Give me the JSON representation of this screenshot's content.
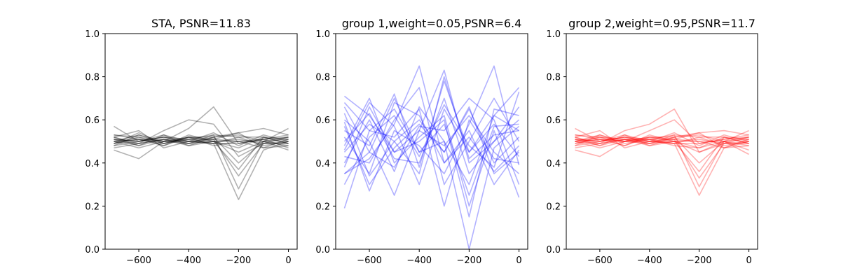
{
  "chart_data": [
    {
      "type": "line",
      "title": "STA, PSNR=11.83",
      "color": "#000000",
      "opacity": 0.3,
      "x": [
        -700,
        -600,
        -500,
        -400,
        -300,
        -200,
        -100,
        0
      ],
      "xticks": [
        -600,
        -400,
        -200,
        0
      ],
      "xtick_labels": [
        "−600",
        "−400",
        "−200",
        "0"
      ],
      "yticks": [
        0.0,
        0.2,
        0.4,
        0.6,
        0.8,
        1.0
      ],
      "ytick_labels": [
        "0.0",
        "0.2",
        "0.4",
        "0.6",
        "0.8",
        "1.0"
      ],
      "xlim": [
        -735,
        35
      ],
      "ylim": [
        0,
        1
      ],
      "series": [
        {
          "values": [
            0.5,
            0.51,
            0.49,
            0.52,
            0.51,
            0.5,
            0.5,
            0.51
          ]
        },
        {
          "values": [
            0.52,
            0.48,
            0.53,
            0.5,
            0.5,
            0.47,
            0.52,
            0.49
          ]
        },
        {
          "values": [
            0.48,
            0.53,
            0.5,
            0.49,
            0.53,
            0.52,
            0.48,
            0.5
          ]
        },
        {
          "values": [
            0.51,
            0.5,
            0.52,
            0.51,
            0.49,
            0.49,
            0.51,
            0.53
          ]
        },
        {
          "values": [
            0.47,
            0.49,
            0.51,
            0.48,
            0.52,
            0.53,
            0.5,
            0.48
          ]
        },
        {
          "values": [
            0.53,
            0.52,
            0.48,
            0.53,
            0.5,
            0.51,
            0.49,
            0.52
          ]
        },
        {
          "values": [
            0.5,
            0.47,
            0.5,
            0.5,
            0.54,
            0.48,
            0.53,
            0.5
          ]
        },
        {
          "values": [
            0.49,
            0.54,
            0.49,
            0.52,
            0.48,
            0.5,
            0.51,
            0.47
          ]
        },
        {
          "values": [
            0.57,
            0.5,
            0.52,
            0.49,
            0.5,
            0.45,
            0.5,
            0.56
          ]
        },
        {
          "values": [
            0.46,
            0.42,
            0.5,
            0.51,
            0.51,
            0.54,
            0.47,
            0.51
          ]
        },
        {
          "values": [
            0.52,
            0.55,
            0.47,
            0.5,
            0.49,
            0.52,
            0.52,
            0.49
          ]
        },
        {
          "values": [
            0.5,
            0.49,
            0.55,
            0.6,
            0.58,
            0.43,
            0.49,
            0.5
          ]
        },
        {
          "values": [
            0.49,
            0.52,
            0.5,
            0.56,
            0.66,
            0.49,
            0.51,
            0.52
          ]
        },
        {
          "values": [
            0.51,
            0.48,
            0.51,
            0.49,
            0.52,
            0.4,
            0.5,
            0.46
          ]
        },
        {
          "values": [
            0.53,
            0.51,
            0.48,
            0.52,
            0.5,
            0.37,
            0.52,
            0.51
          ]
        },
        {
          "values": [
            0.48,
            0.5,
            0.52,
            0.5,
            0.51,
            0.34,
            0.49,
            0.49
          ]
        },
        {
          "values": [
            0.5,
            0.53,
            0.49,
            0.51,
            0.53,
            0.28,
            0.5,
            0.52
          ]
        },
        {
          "values": [
            0.52,
            0.49,
            0.51,
            0.5,
            0.49,
            0.23,
            0.46,
            0.5
          ]
        },
        {
          "values": [
            0.49,
            0.51,
            0.5,
            0.52,
            0.52,
            0.54,
            0.56,
            0.53
          ]
        },
        {
          "values": [
            0.51,
            0.5,
            0.53,
            0.48,
            0.5,
            0.5,
            0.47,
            0.48
          ]
        }
      ]
    },
    {
      "type": "line",
      "title": "group 1,weight=0.05,PSNR=6.4",
      "color": "#0000ff",
      "opacity": 0.3,
      "x": [
        -700,
        -600,
        -500,
        -400,
        -300,
        -200,
        -100,
        0
      ],
      "xticks": [
        -600,
        -400,
        -200,
        0
      ],
      "xtick_labels": [
        "−600",
        "−400",
        "−200",
        "0"
      ],
      "yticks": [
        0.0,
        0.2,
        0.4,
        0.6,
        0.8,
        1.0
      ],
      "ytick_labels": [
        "0.0",
        "0.2",
        "0.4",
        "0.6",
        "0.8",
        "1.0"
      ],
      "xlim": [
        -735,
        35
      ],
      "ylim": [
        0,
        1
      ],
      "series": [
        {
          "values": [
            0.71,
            0.62,
            0.45,
            0.55,
            0.83,
            0.4,
            0.5,
            0.6
          ]
        },
        {
          "values": [
            0.19,
            0.55,
            0.65,
            0.45,
            0.5,
            0.3,
            0.62,
            0.75
          ]
        },
        {
          "values": [
            0.35,
            0.42,
            0.58,
            0.85,
            0.4,
            0.52,
            0.36,
            0.48
          ]
        },
        {
          "values": [
            0.48,
            0.7,
            0.4,
            0.52,
            0.62,
            0.2,
            0.55,
            0.24
          ]
        },
        {
          "values": [
            0.63,
            0.34,
            0.5,
            0.6,
            0.45,
            0.65,
            0.4,
            0.52
          ]
        },
        {
          "values": [
            0.55,
            0.48,
            0.72,
            0.38,
            0.78,
            0.45,
            0.58,
            0.43
          ]
        },
        {
          "values": [
            0.4,
            0.6,
            0.36,
            0.66,
            0.5,
            0.0,
            0.47,
            0.57
          ]
        },
        {
          "values": [
            0.59,
            0.27,
            0.55,
            0.48,
            0.35,
            0.58,
            0.85,
            0.39
          ]
        },
        {
          "values": [
            0.3,
            0.52,
            0.62,
            0.43,
            0.67,
            0.48,
            0.38,
            0.73
          ]
        },
        {
          "values": [
            0.66,
            0.45,
            0.38,
            0.57,
            0.55,
            0.7,
            0.6,
            0.3
          ]
        },
        {
          "values": [
            0.45,
            0.58,
            0.5,
            0.35,
            0.8,
            0.42,
            0.53,
            0.55
          ]
        },
        {
          "values": [
            0.52,
            0.35,
            0.68,
            0.62,
            0.4,
            0.55,
            0.3,
            0.46
          ]
        },
        {
          "values": [
            0.38,
            0.66,
            0.45,
            0.5,
            0.6,
            0.15,
            0.65,
            0.62
          ]
        },
        {
          "values": [
            0.6,
            0.5,
            0.25,
            0.55,
            0.48,
            0.62,
            0.45,
            0.35
          ]
        },
        {
          "values": [
            0.43,
            0.4,
            0.6,
            0.75,
            0.3,
            0.5,
            0.7,
            0.5
          ]
        },
        {
          "values": [
            0.5,
            0.63,
            0.42,
            0.4,
            0.7,
            0.35,
            0.5,
            0.66
          ]
        },
        {
          "values": [
            0.68,
            0.55,
            0.52,
            0.65,
            0.2,
            0.6,
            0.42,
            0.4
          ]
        },
        {
          "values": [
            0.35,
            0.45,
            0.7,
            0.45,
            0.58,
            0.25,
            0.57,
            0.58
          ]
        },
        {
          "values": [
            0.57,
            0.3,
            0.47,
            0.58,
            0.45,
            0.66,
            0.35,
            0.45
          ]
        },
        {
          "values": [
            0.46,
            0.68,
            0.57,
            0.3,
            0.65,
            0.45,
            0.62,
            0.55
          ]
        }
      ]
    },
    {
      "type": "line",
      "title": "group 2,weight=0.95,PSNR=11.7",
      "color": "#ff0000",
      "opacity": 0.3,
      "x": [
        -700,
        -600,
        -500,
        -400,
        -300,
        -200,
        -100,
        0
      ],
      "xticks": [
        -600,
        -400,
        -200,
        0
      ],
      "xtick_labels": [
        "−600",
        "−400",
        "−200",
        "0"
      ],
      "yticks": [
        0.0,
        0.2,
        0.4,
        0.6,
        0.8,
        1.0
      ],
      "ytick_labels": [
        "0.0",
        "0.2",
        "0.4",
        "0.6",
        "0.8",
        "1.0"
      ],
      "xlim": [
        -735,
        35
      ],
      "ylim": [
        0,
        1
      ],
      "series": [
        {
          "values": [
            0.5,
            0.51,
            0.5,
            0.52,
            0.51,
            0.5,
            0.5,
            0.51
          ]
        },
        {
          "values": [
            0.52,
            0.48,
            0.53,
            0.5,
            0.5,
            0.47,
            0.52,
            0.49
          ]
        },
        {
          "values": [
            0.48,
            0.53,
            0.5,
            0.49,
            0.53,
            0.52,
            0.48,
            0.5
          ]
        },
        {
          "values": [
            0.51,
            0.5,
            0.52,
            0.51,
            0.49,
            0.49,
            0.51,
            0.53
          ]
        },
        {
          "values": [
            0.47,
            0.49,
            0.51,
            0.48,
            0.52,
            0.53,
            0.5,
            0.48
          ]
        },
        {
          "values": [
            0.53,
            0.52,
            0.48,
            0.53,
            0.5,
            0.51,
            0.49,
            0.52
          ]
        },
        {
          "values": [
            0.5,
            0.47,
            0.5,
            0.5,
            0.54,
            0.48,
            0.53,
            0.5
          ]
        },
        {
          "values": [
            0.56,
            0.5,
            0.52,
            0.49,
            0.5,
            0.45,
            0.5,
            0.55
          ]
        },
        {
          "values": [
            0.46,
            0.43,
            0.5,
            0.51,
            0.51,
            0.54,
            0.47,
            0.51
          ]
        },
        {
          "values": [
            0.52,
            0.55,
            0.47,
            0.5,
            0.49,
            0.52,
            0.52,
            0.49
          ]
        },
        {
          "values": [
            0.5,
            0.49,
            0.55,
            0.58,
            0.65,
            0.45,
            0.49,
            0.5
          ]
        },
        {
          "values": [
            0.49,
            0.52,
            0.5,
            0.55,
            0.6,
            0.49,
            0.51,
            0.52
          ]
        },
        {
          "values": [
            0.51,
            0.48,
            0.51,
            0.49,
            0.52,
            0.4,
            0.5,
            0.46
          ]
        },
        {
          "values": [
            0.53,
            0.51,
            0.48,
            0.52,
            0.5,
            0.36,
            0.52,
            0.51
          ]
        },
        {
          "values": [
            0.48,
            0.5,
            0.52,
            0.5,
            0.51,
            0.33,
            0.49,
            0.49
          ]
        },
        {
          "values": [
            0.5,
            0.53,
            0.49,
            0.51,
            0.53,
            0.29,
            0.5,
            0.52
          ]
        },
        {
          "values": [
            0.52,
            0.49,
            0.51,
            0.5,
            0.49,
            0.25,
            0.47,
            0.5
          ]
        },
        {
          "values": [
            0.49,
            0.51,
            0.5,
            0.52,
            0.52,
            0.54,
            0.55,
            0.53
          ]
        },
        {
          "values": [
            0.51,
            0.5,
            0.53,
            0.48,
            0.5,
            0.5,
            0.47,
            0.48
          ]
        },
        {
          "values": [
            0.5,
            0.52,
            0.51,
            0.51,
            0.48,
            0.47,
            0.5,
            0.44
          ]
        }
      ]
    }
  ]
}
